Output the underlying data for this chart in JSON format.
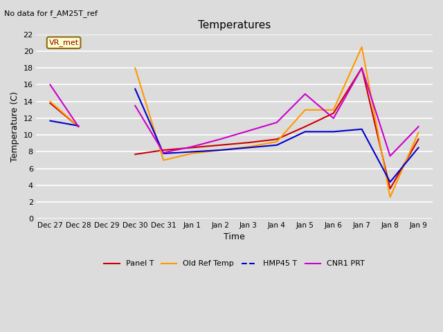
{
  "title": "Temperatures",
  "xlabel": "Time",
  "ylabel": "Temperature (C)",
  "no_data_text": "No data for f_AM25T_ref",
  "vr_met_label": "VR_met",
  "x_tick_labels": [
    "Dec 27",
    "Dec 28",
    "Dec 29",
    "Dec 30",
    "Dec 31",
    "Jan 1",
    "Jan 2",
    "Jan 3",
    "Jan 4",
    "Jan 5",
    "Jan 6",
    "Jan 7",
    "Jan 8",
    "Jan 9"
  ],
  "ylim": [
    0,
    22
  ],
  "yticks": [
    0,
    2,
    4,
    6,
    8,
    10,
    12,
    14,
    16,
    18,
    20,
    22
  ],
  "series": {
    "Panel T": {
      "color": "#cc0000",
      "y": [
        13.8,
        11.0,
        null,
        7.7,
        8.2,
        8.5,
        8.8,
        9.1,
        9.5,
        11.0,
        12.6,
        18.0,
        3.6,
        9.5
      ]
    },
    "Old Ref Temp": {
      "color": "#ff9900",
      "y": [
        14.0,
        11.0,
        null,
        18.0,
        7.0,
        7.8,
        8.2,
        8.6,
        9.2,
        13.0,
        13.0,
        20.5,
        2.6,
        10.3
      ]
    },
    "HMP45 T": {
      "color": "#0000cc",
      "y": [
        11.7,
        11.1,
        null,
        15.5,
        7.8,
        8.0,
        8.2,
        8.5,
        8.8,
        10.4,
        10.4,
        10.7,
        4.4,
        8.5
      ]
    },
    "CNR1 PRT": {
      "color": "#cc00cc",
      "y": [
        16.0,
        11.0,
        null,
        13.5,
        7.9,
        8.6,
        9.5,
        10.5,
        11.5,
        14.9,
        12.0,
        18.0,
        7.5,
        11.0
      ]
    }
  },
  "background_color": "#dcdcdc",
  "plot_bg_color": "#dcdcdc",
  "grid_color": "#ffffff",
  "legend_items": [
    "Panel T",
    "Old Ref Temp",
    "HMP45 T",
    "CNR1 PRT"
  ],
  "legend_linestyles": [
    "-",
    "-",
    "--",
    "-"
  ]
}
